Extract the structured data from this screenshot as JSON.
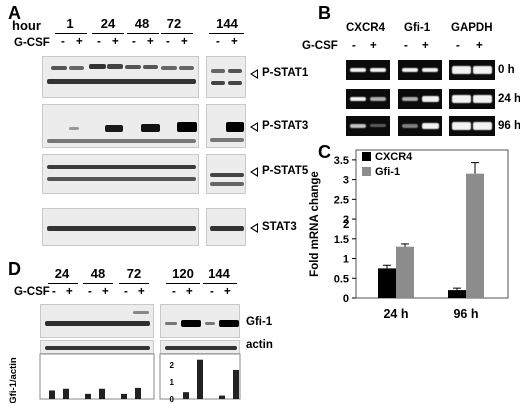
{
  "panelA": {
    "label": "A",
    "hour_label": "hour",
    "gcsf_label": "G-CSF",
    "hours": [
      "1",
      "24",
      "48",
      "72",
      "144"
    ],
    "signs": [
      "-",
      "+"
    ],
    "blots": [
      "P-STAT1",
      "P-STAT3",
      "P-STAT5",
      "STAT3"
    ]
  },
  "panelB": {
    "label": "B",
    "genes": [
      "CXCR4",
      "Gfi-1",
      "GAPDH"
    ],
    "gcsf_label": "G-CSF",
    "signs": [
      "-",
      "+"
    ],
    "times": [
      "0 h",
      "24 h",
      "96 h"
    ]
  },
  "panelC": {
    "label": "C",
    "annotation": "2"
  },
  "panelD": {
    "label": "D",
    "gcsf_label": "G-CSF",
    "times": [
      "24",
      "48",
      "72",
      "120",
      "144"
    ],
    "signs": [
      "-",
      "+"
    ],
    "blots": [
      "Gfi-1",
      "actin"
    ],
    "ylabel": "Gfi-1/actin",
    "yticks": [
      "2",
      "1",
      "0"
    ],
    "ratios": [
      0.5,
      0.6,
      0.3,
      0.6,
      0.3,
      0.65,
      0.4,
      2.3,
      0.2,
      1.7
    ]
  },
  "chart_data": {
    "type": "bar",
    "categories": [
      "24 h",
      "96 h"
    ],
    "series": [
      {
        "name": "CXCR4",
        "values": [
          0.75,
          0.2
        ],
        "errors": [
          0.08,
          0.05
        ],
        "color": "#000000"
      },
      {
        "name": "Gfi-1",
        "values": [
          1.3,
          3.15
        ],
        "errors": [
          0.07,
          0.28
        ],
        "color": "#8c8c8c"
      }
    ],
    "ylabel": "Fold mRNA change",
    "xlabel": "",
    "ylim": [
      0,
      3.75
    ],
    "yticks": [
      "0",
      "0.5",
      "1",
      "1.5",
      "2",
      "2.5",
      "3",
      "3.5"
    ],
    "legend_position": "top-left"
  }
}
